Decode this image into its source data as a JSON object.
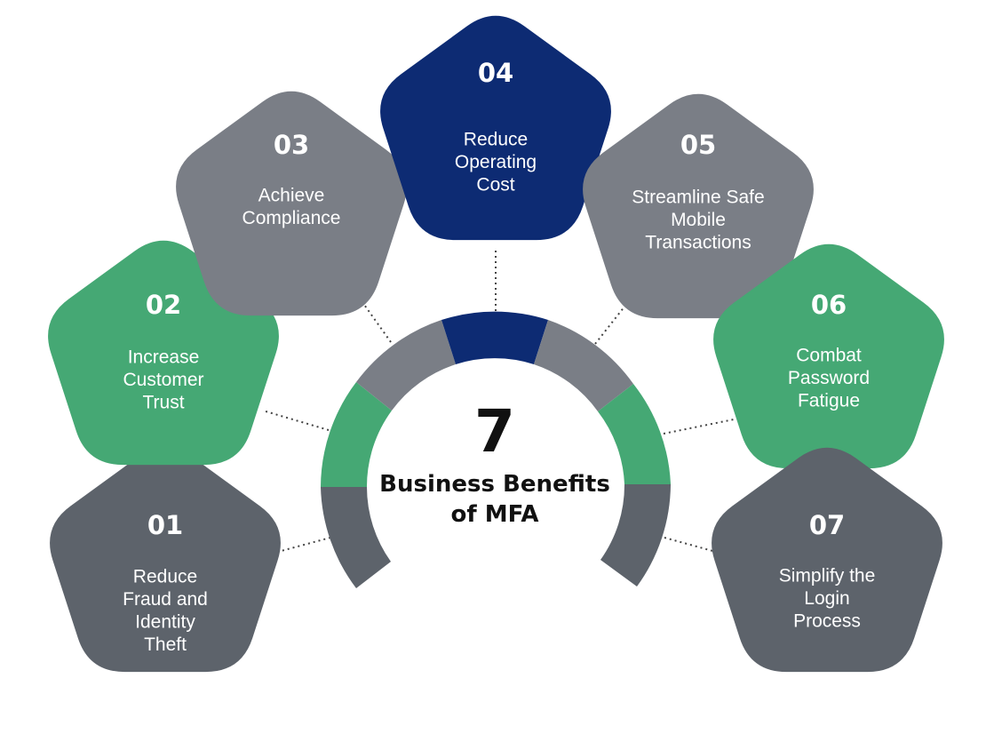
{
  "center": {
    "number": "7",
    "title_line1": "Business Benefits",
    "title_line2": "of MFA"
  },
  "colors": {
    "dark_gray": "#5d636b",
    "mid_gray": "#7a7e86",
    "green": "#45a874",
    "navy": "#0d2b73"
  },
  "benefits": [
    {
      "number": "01",
      "lines": [
        "Reduce",
        "Fraud and",
        "Identity",
        "Theft"
      ],
      "color": "dark_gray"
    },
    {
      "number": "02",
      "lines": [
        "Increase",
        "Customer",
        "Trust"
      ],
      "color": "green"
    },
    {
      "number": "03",
      "lines": [
        "Achieve",
        "Compliance"
      ],
      "color": "mid_gray"
    },
    {
      "number": "04",
      "lines": [
        "Reduce",
        "Operating",
        "Cost"
      ],
      "color": "navy"
    },
    {
      "number": "05",
      "lines": [
        "Streamline Safe",
        "Mobile",
        "Transactions"
      ],
      "color": "mid_gray"
    },
    {
      "number": "06",
      "lines": [
        "Combat",
        "Password",
        "Fatigue"
      ],
      "color": "green"
    },
    {
      "number": "07",
      "lines": [
        "Simplify the",
        "Login",
        "Process"
      ],
      "color": "dark_gray"
    }
  ]
}
